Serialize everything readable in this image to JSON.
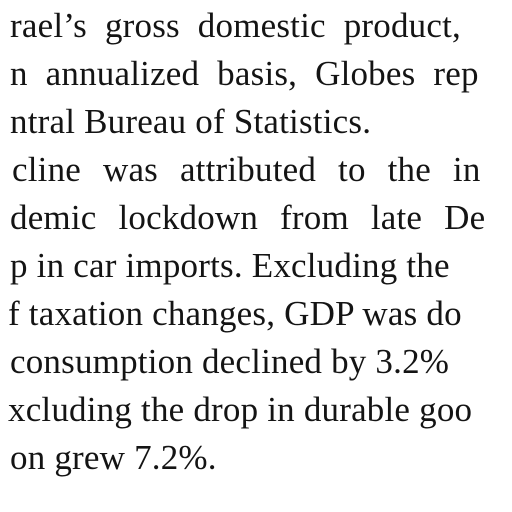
{
  "article": {
    "lines": [
      "rael’s gross domestic product,",
      "n annualized basis, Globes rep",
      "ntral Bureau of Statistics.",
      "cline was attributed to the in",
      "demic lockdown from late De",
      "p in car imports. Excluding the",
      "f taxation changes, GDP was do",
      " consumption declined by 3.2%",
      "xcluding the drop in durable goo",
      "on grew 7.2%."
    ]
  }
}
